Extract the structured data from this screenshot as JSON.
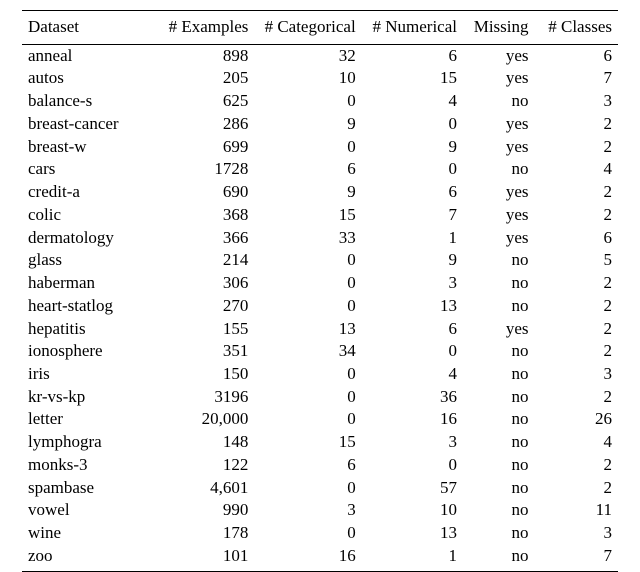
{
  "table": {
    "type": "table",
    "background_color": "#ffffff",
    "text_color": "#000000",
    "rule_color": "#000000",
    "font_family": "Times New Roman",
    "header_fontsize_pt": 13,
    "body_fontsize_pt": 13,
    "column_widths_pct": [
      22,
      17,
      18,
      17,
      12,
      14
    ],
    "columns": [
      {
        "key": "dataset",
        "label": "Dataset",
        "align": "left"
      },
      {
        "key": "examples",
        "label": "# Examples",
        "align": "right"
      },
      {
        "key": "cat",
        "label": "# Categorical",
        "align": "right"
      },
      {
        "key": "num",
        "label": "# Numerical",
        "align": "right"
      },
      {
        "key": "missing",
        "label": "Missing",
        "align": "right"
      },
      {
        "key": "classes",
        "label": "# Classes",
        "align": "right"
      }
    ],
    "rows": [
      {
        "dataset": "anneal",
        "examples": "898",
        "cat": "32",
        "num": "6",
        "missing": "yes",
        "classes": "6"
      },
      {
        "dataset": "autos",
        "examples": "205",
        "cat": "10",
        "num": "15",
        "missing": "yes",
        "classes": "7"
      },
      {
        "dataset": "balance-s",
        "examples": "625",
        "cat": "0",
        "num": "4",
        "missing": "no",
        "classes": "3"
      },
      {
        "dataset": "breast-cancer",
        "examples": "286",
        "cat": "9",
        "num": "0",
        "missing": "yes",
        "classes": "2"
      },
      {
        "dataset": "breast-w",
        "examples": "699",
        "cat": "0",
        "num": "9",
        "missing": "yes",
        "classes": "2"
      },
      {
        "dataset": "cars",
        "examples": "1728",
        "cat": "6",
        "num": "0",
        "missing": "no",
        "classes": "4"
      },
      {
        "dataset": "credit-a",
        "examples": "690",
        "cat": "9",
        "num": "6",
        "missing": "yes",
        "classes": "2"
      },
      {
        "dataset": "colic",
        "examples": "368",
        "cat": "15",
        "num": "7",
        "missing": "yes",
        "classes": "2"
      },
      {
        "dataset": "dermatology",
        "examples": "366",
        "cat": "33",
        "num": "1",
        "missing": "yes",
        "classes": "6"
      },
      {
        "dataset": "glass",
        "examples": "214",
        "cat": "0",
        "num": "9",
        "missing": "no",
        "classes": "5"
      },
      {
        "dataset": "haberman",
        "examples": "306",
        "cat": "0",
        "num": "3",
        "missing": "no",
        "classes": "2"
      },
      {
        "dataset": "heart-statlog",
        "examples": "270",
        "cat": "0",
        "num": "13",
        "missing": "no",
        "classes": "2"
      },
      {
        "dataset": "hepatitis",
        "examples": "155",
        "cat": "13",
        "num": "6",
        "missing": "yes",
        "classes": "2"
      },
      {
        "dataset": "ionosphere",
        "examples": "351",
        "cat": "34",
        "num": "0",
        "missing": "no",
        "classes": "2"
      },
      {
        "dataset": "iris",
        "examples": "150",
        "cat": "0",
        "num": "4",
        "missing": "no",
        "classes": "3"
      },
      {
        "dataset": "kr-vs-kp",
        "examples": "3196",
        "cat": "0",
        "num": "36",
        "missing": "no",
        "classes": "2"
      },
      {
        "dataset": "letter",
        "examples": "20,000",
        "cat": "0",
        "num": "16",
        "missing": "no",
        "classes": "26"
      },
      {
        "dataset": "lymphogra",
        "examples": "148",
        "cat": "15",
        "num": "3",
        "missing": "no",
        "classes": "4"
      },
      {
        "dataset": "monks-3",
        "examples": "122",
        "cat": "6",
        "num": "0",
        "missing": "no",
        "classes": "2"
      },
      {
        "dataset": "spambase",
        "examples": "4,601",
        "cat": "0",
        "num": "57",
        "missing": "no",
        "classes": "2"
      },
      {
        "dataset": "vowel",
        "examples": "990",
        "cat": "3",
        "num": "10",
        "missing": "no",
        "classes": "11"
      },
      {
        "dataset": "wine",
        "examples": "178",
        "cat": "0",
        "num": "13",
        "missing": "no",
        "classes": "3"
      },
      {
        "dataset": "zoo",
        "examples": "101",
        "cat": "16",
        "num": "1",
        "missing": "no",
        "classes": "7"
      }
    ]
  }
}
